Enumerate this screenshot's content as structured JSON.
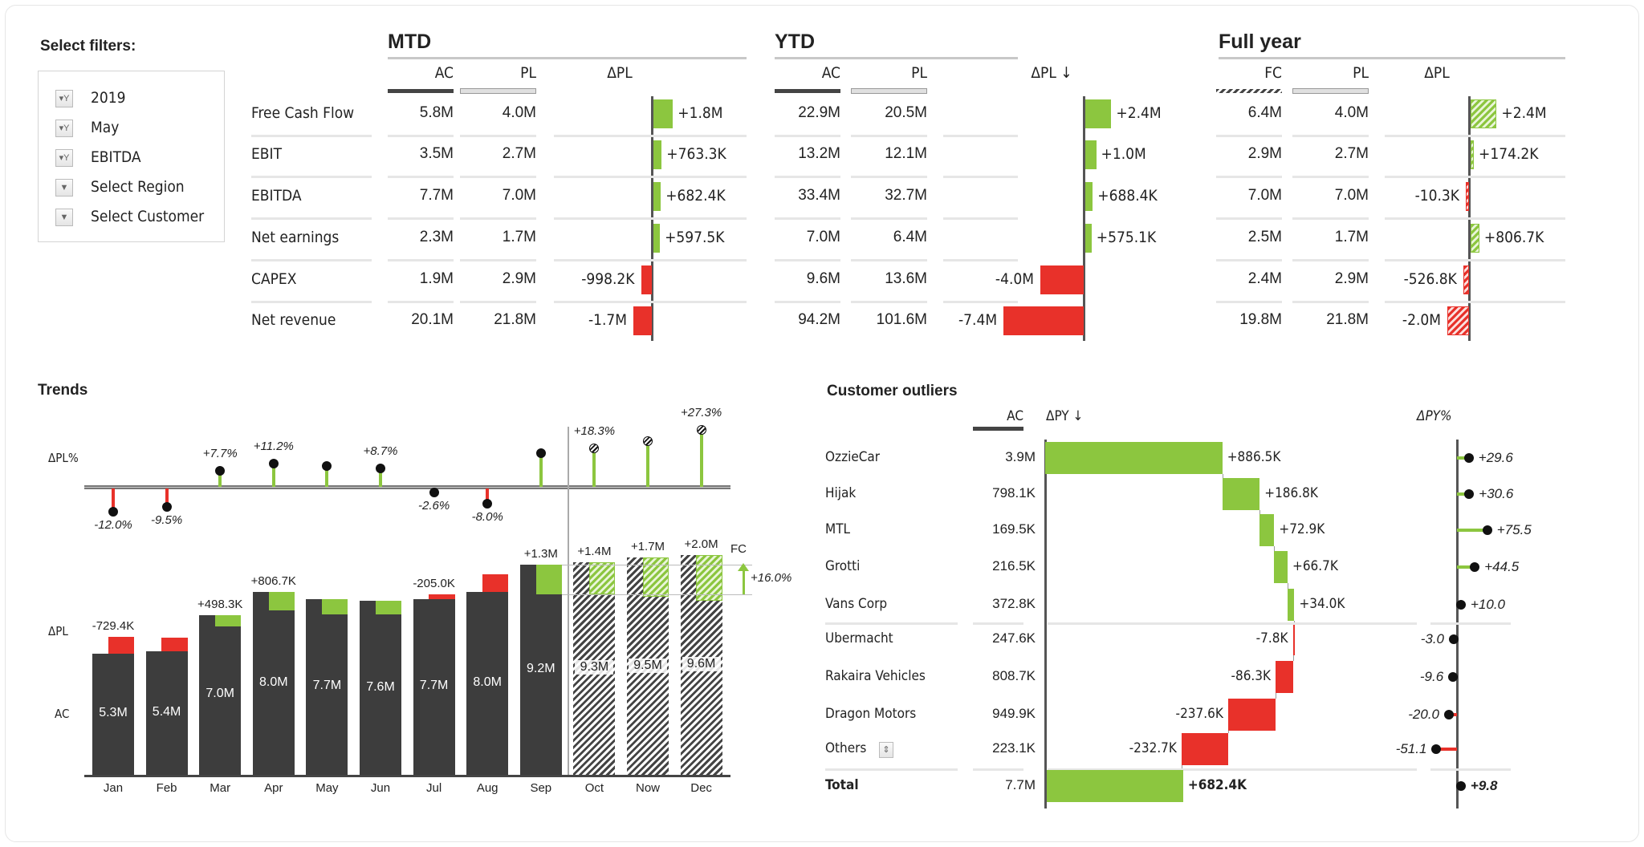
{
  "filters": {
    "title": "Select filters:",
    "items": [
      {
        "label": "2019",
        "icon": "filter-active-icon"
      },
      {
        "label": "May",
        "icon": "filter-active-icon"
      },
      {
        "label": "EBITDA",
        "icon": "filter-active-icon"
      },
      {
        "label": "Select Region",
        "icon": "dropdown-icon"
      },
      {
        "label": "Select Customer",
        "icon": "dropdown-icon"
      }
    ]
  },
  "kpi": {
    "rows": [
      "Free Cash Flow",
      "EBIT",
      "EBITDA",
      "Net earnings",
      "CAPEX",
      "Net revenue"
    ],
    "sections": [
      {
        "title": "MTD",
        "col1": "AC",
        "col2": "PL",
        "delta_header": "ΔPL",
        "col1_values": [
          "5.8M",
          "3.5M",
          "7.7M",
          "2.3M",
          "1.9M",
          "20.1M"
        ],
        "col2_values": [
          "4.0M",
          "2.7M",
          "7.0M",
          "1.7M",
          "2.9M",
          "21.8M"
        ],
        "delta_labels": [
          "+1.8M",
          "+763.3K",
          "+682.4K",
          "+597.5K",
          "-998.2K",
          "-1.7M"
        ],
        "delta_values_m": [
          1.8,
          0.7633,
          0.6824,
          0.5975,
          -0.9982,
          -1.7
        ]
      },
      {
        "title": "YTD",
        "col1": "AC",
        "col2": "PL",
        "delta_header": "ΔPL ↓",
        "col1_values": [
          "22.9M",
          "13.2M",
          "33.4M",
          "7.0M",
          "9.6M",
          "94.2M"
        ],
        "col2_values": [
          "20.5M",
          "12.1M",
          "32.7M",
          "6.4M",
          "13.6M",
          "101.6M"
        ],
        "delta_labels": [
          "+2.4M",
          "+1.0M",
          "+688.4K",
          "+575.1K",
          "-4.0M",
          "-7.4M"
        ],
        "delta_values_m": [
          2.4,
          1.0,
          0.6884,
          0.5751,
          -4.0,
          -7.4
        ]
      },
      {
        "title": "Full year",
        "col1": "FC",
        "col2": "PL",
        "delta_header": "ΔPL",
        "col1_values": [
          "6.4M",
          "2.9M",
          "7.0M",
          "2.5M",
          "2.4M",
          "19.8M"
        ],
        "col2_values": [
          "4.0M",
          "2.7M",
          "7.0M",
          "1.7M",
          "2.9M",
          "21.8M"
        ],
        "delta_labels": [
          "+2.4M",
          "+174.2K",
          "-10.3K",
          "+806.7K",
          "-526.8K",
          "-2.0M"
        ],
        "delta_values_m": [
          2.4,
          0.1742,
          -0.0103,
          0.8067,
          -0.5268,
          -2.0
        ]
      }
    ]
  },
  "trends": {
    "title": "Trends",
    "row_label_pct": "ΔPL%",
    "row_label_delta": "ΔPL",
    "row_label_ac": "AC",
    "fc_label": "FC",
    "fc_change": "+16.0%",
    "chart_data": {
      "type": "bar",
      "categories": [
        "Jan",
        "Feb",
        "Mar",
        "Apr",
        "May",
        "Jun",
        "Jul",
        "Aug",
        "Sep",
        "Oct",
        "Now",
        "Dec"
      ],
      "forecast_from": "Oct",
      "ac_values_m": [
        5.3,
        5.4,
        7.0,
        8.0,
        7.7,
        7.6,
        7.7,
        8.0,
        9.2,
        9.3,
        9.5,
        9.6
      ],
      "ac_labels": [
        "5.3M",
        "5.4M",
        "7.0M",
        "8.0M",
        "7.7M",
        "7.6M",
        "7.7M",
        "8.0M",
        "9.2M",
        "9.3M",
        "9.5M",
        "9.6M"
      ],
      "delta_pl_m": [
        -0.7294,
        -0.6,
        0.4983,
        0.8067,
        0.7,
        0.6,
        -0.205,
        -0.78,
        1.3,
        1.4,
        1.7,
        2.0
      ],
      "delta_pl_labels": [
        "-729.4K",
        "",
        "+498.3K",
        "+806.7K",
        "",
        "",
        "-205.0K",
        "",
        "+1.3M",
        "+1.4M",
        "+1.7M",
        "+2.0M"
      ],
      "delta_pl_pct": [
        -12.0,
        -9.5,
        7.7,
        11.2,
        10.0,
        8.7,
        -2.6,
        -8.0,
        16.0,
        18.3,
        22.0,
        27.3
      ],
      "delta_pl_pct_labels": [
        "-12.0%",
        "-9.5%",
        "+7.7%",
        "+11.2%",
        "",
        "+8.7%",
        "-2.6%",
        "-8.0%",
        "",
        "+18.3%",
        "",
        "+27.3%"
      ],
      "colors": {
        "positive": "#8cc63f",
        "negative": "#e8312a",
        "actual": "#3d3d3d"
      }
    }
  },
  "customers": {
    "title": "Customer outliers",
    "col_ac": "AC",
    "col_delta": "ΔPY ↓",
    "col_pct": "ΔPY%",
    "rows": [
      {
        "name": "OzzieCar",
        "ac": "3.9M",
        "delta": 886.5,
        "delta_label": "+886.5K",
        "pct": 29.6,
        "pct_label": "+29.6"
      },
      {
        "name": "Hijak",
        "ac": "798.1K",
        "delta": 186.8,
        "delta_label": "+186.8K",
        "pct": 30.6,
        "pct_label": "+30.6"
      },
      {
        "name": "MTL",
        "ac": "169.5K",
        "delta": 72.9,
        "delta_label": "+72.9K",
        "pct": 75.5,
        "pct_label": "+75.5"
      },
      {
        "name": "Grotti",
        "ac": "216.5K",
        "delta": 66.7,
        "delta_label": "+66.7K",
        "pct": 44.5,
        "pct_label": "+44.5"
      },
      {
        "name": "Vans Corp",
        "ac": "372.8K",
        "delta": 34.0,
        "delta_label": "+34.0K",
        "pct": 10.0,
        "pct_label": "+10.0"
      },
      {
        "name": "Ubermacht",
        "ac": "247.6K",
        "delta": -7.8,
        "delta_label": "-7.8K",
        "pct": -3.0,
        "pct_label": "-3.0"
      },
      {
        "name": "Rakaira Vehicles",
        "ac": "808.7K",
        "delta": -86.3,
        "delta_label": "-86.3K",
        "pct": -9.6,
        "pct_label": "-9.6"
      },
      {
        "name": "Dragon Motors",
        "ac": "949.9K",
        "delta": -237.6,
        "delta_label": "-237.6K",
        "pct": -20.0,
        "pct_label": "-20.0"
      },
      {
        "name": "Others",
        "ac": "223.1K",
        "delta": -232.7,
        "delta_label": "-232.7K",
        "pct": -51.1,
        "pct_label": "-51.1",
        "expand_icon": "expand-collapse-icon"
      }
    ],
    "total": {
      "name": "Total",
      "ac": "7.7M",
      "delta": 682.4,
      "delta_label": "+682.4K",
      "pct": 9.8,
      "pct_label": "+9.8"
    }
  }
}
